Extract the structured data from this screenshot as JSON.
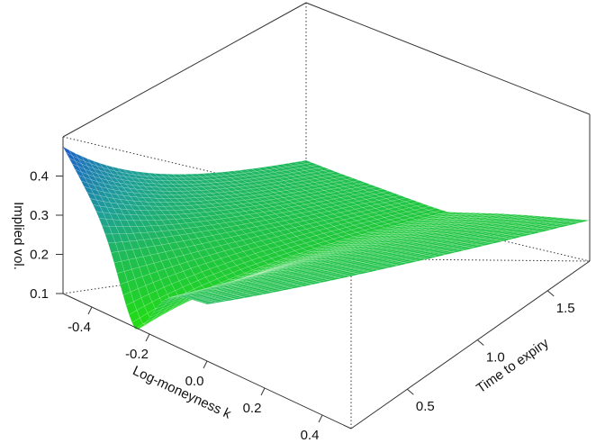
{
  "chart_data": {
    "type": "surface",
    "zlabel": "Implied vol.",
    "xlabel": "Log-moneyness k",
    "ylabel": "Time to expiry",
    "x_range": [
      -0.5,
      0.5
    ],
    "y_range": [
      0.1,
      1.8
    ],
    "z_range": [
      0.1,
      0.5
    ],
    "x_ticks": [
      "-0.4",
      "-0.2",
      "0.0",
      "0.2",
      "0.4"
    ],
    "y_ticks": [
      "0.5",
      "1.0",
      "1.5"
    ],
    "z_ticks": [
      "0.1",
      "0.2",
      "0.3",
      "0.4"
    ],
    "x_tick_values": [
      -0.4,
      -0.2,
      0.0,
      0.2,
      0.4
    ],
    "y_tick_values": [
      0.5,
      1.0,
      1.5
    ],
    "z_tick_values": [
      0.1,
      0.2,
      0.3,
      0.4
    ],
    "grid": false,
    "colors": {
      "low": "#22dd11",
      "mid": "#1fb868",
      "high": "#1a4fd6",
      "mesh": "#f2fff2",
      "box": "#333333"
    },
    "corner_values": {
      "k_-0.5_T_0.1": 0.48,
      "k_0.0_T_0.1": 0.1,
      "k_0.5_T_0.1": 0.14,
      "k_-0.5_T_1.8": 0.26,
      "k_0.5_T_1.8": 0.18
    }
  }
}
